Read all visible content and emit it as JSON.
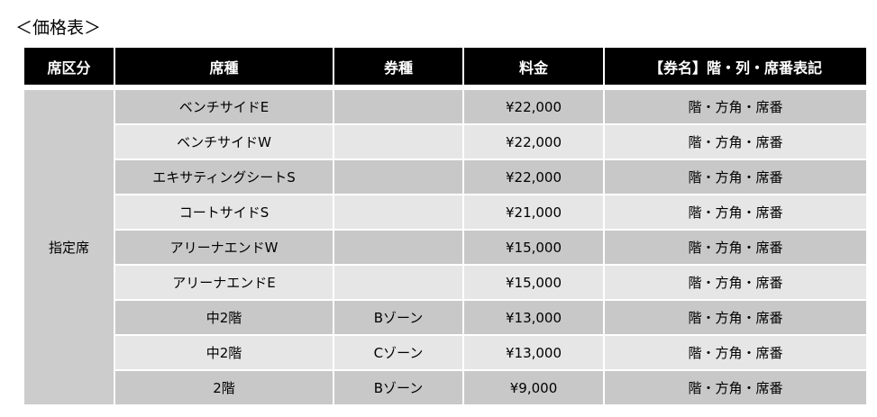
{
  "title": "＜価格表＞",
  "headers": [
    "席区分",
    "席種",
    "券種",
    "料金",
    "【券名】階・列・席番表記"
  ],
  "category": "指定席",
  "rows": [
    {
      "seat": "ベンチサイドE",
      "ticket": "",
      "price": "¥22,000",
      "notation": "階・方角・席番"
    },
    {
      "seat": "ベンチサイドW",
      "ticket": "",
      "price": "¥22,000",
      "notation": "階・方角・席番"
    },
    {
      "seat": "エキサティングシートS",
      "ticket": "",
      "price": "¥22,000",
      "notation": "階・方角・席番"
    },
    {
      "seat": "コートサイドS",
      "ticket": "",
      "price": "¥21,000",
      "notation": "階・方角・席番"
    },
    {
      "seat": "アリーナエンドW",
      "ticket": "",
      "price": "¥15,000",
      "notation": "階・方角・席番"
    },
    {
      "seat": "アリーナエンドE",
      "ticket": "",
      "price": "¥15,000",
      "notation": "階・方角・席番"
    },
    {
      "seat": "中2階",
      "ticket": "Bゾーン",
      "price": "¥13,000",
      "notation": "階・方角・席番"
    },
    {
      "seat": "中2階",
      "ticket": "Cゾーン",
      "price": "¥13,000",
      "notation": "階・方角・席番"
    },
    {
      "seat": "2階",
      "ticket": "Bゾーン",
      "price": "¥9,000",
      "notation": "階・方角・席番"
    }
  ]
}
